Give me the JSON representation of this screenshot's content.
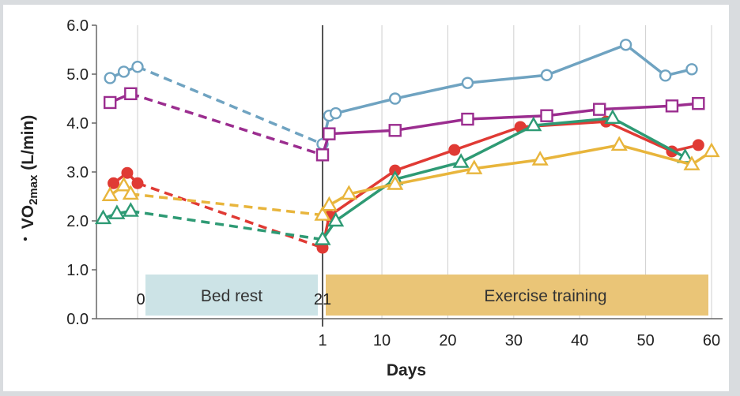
{
  "chart_data": {
    "type": "line",
    "ylabel_main": "VO",
    "ylabel_sub": "2max",
    "ylabel_unit": " (L/min)",
    "xlabel": "Days",
    "ylim": [
      0,
      6
    ],
    "y_ticks": [
      "0.0",
      "1.0",
      "2.0",
      "3.0",
      "4.0",
      "5.0",
      "6.0"
    ],
    "x_ticks_left": [
      "0",
      "21"
    ],
    "x_ticks_right": [
      "1",
      "10",
      "20",
      "30",
      "40",
      "50",
      "60"
    ],
    "phases": [
      {
        "name": "bed_rest",
        "label": "Bed rest",
        "color": "#cce3e6",
        "start_day": 0,
        "end_day": 21
      },
      {
        "name": "exercise_training",
        "label": "Exercise training",
        "color": "#eac577",
        "start_day": 1,
        "end_day": 60
      }
    ],
    "grid": "vertical",
    "series": [
      {
        "color": "#6fa3c1",
        "marker": "circle-open",
        "pre": [
          [
            -4,
            4.92
          ],
          [
            -2,
            5.05
          ],
          [
            0,
            5.15
          ]
        ],
        "bed_rest_end": 3.57,
        "training": [
          [
            2,
            4.15
          ],
          [
            3,
            4.2
          ],
          [
            12,
            4.5
          ],
          [
            23,
            4.82
          ],
          [
            35,
            4.98
          ],
          [
            47,
            5.6
          ],
          [
            53,
            4.97
          ],
          [
            57,
            5.1
          ]
        ]
      },
      {
        "color": "#9b2d8f",
        "marker": "square-open",
        "pre": [
          [
            -4,
            4.42
          ],
          [
            -1,
            4.6
          ]
        ],
        "bed_rest_end": 3.35,
        "training": [
          [
            2,
            3.78
          ],
          [
            12,
            3.85
          ],
          [
            23,
            4.08
          ],
          [
            35,
            4.15
          ],
          [
            43,
            4.28
          ],
          [
            54,
            4.35
          ],
          [
            58,
            4.4
          ]
        ]
      },
      {
        "color": "#e03a34",
        "marker": "circle-filled",
        "pre": [
          [
            -3.5,
            2.77
          ],
          [
            -1.5,
            2.98
          ],
          [
            0,
            2.77
          ]
        ],
        "bed_rest_end": 1.45,
        "training": [
          [
            2,
            2.1
          ],
          [
            12,
            3.03
          ],
          [
            21,
            3.45
          ],
          [
            31,
            3.92
          ],
          [
            44,
            4.03
          ],
          [
            54,
            3.42
          ],
          [
            58,
            3.55
          ]
        ]
      },
      {
        "color": "#2e9a74",
        "marker": "triangle-open",
        "pre": [
          [
            -5,
            2.05
          ],
          [
            -3,
            2.15
          ],
          [
            -1,
            2.2
          ]
        ],
        "bed_rest_end": 1.62,
        "training": [
          [
            3,
            2.0
          ],
          [
            12,
            2.85
          ],
          [
            22,
            3.2
          ],
          [
            33,
            3.95
          ],
          [
            45,
            4.1
          ],
          [
            56,
            3.3
          ]
        ]
      },
      {
        "color": "#e8b53c",
        "marker": "triangle-open",
        "pre": [
          [
            -4,
            2.52
          ],
          [
            -2,
            2.72
          ],
          [
            -1,
            2.55
          ]
        ],
        "bed_rest_end": 2.12,
        "training": [
          [
            2,
            2.32
          ],
          [
            5,
            2.55
          ],
          [
            12,
            2.75
          ],
          [
            24,
            3.07
          ],
          [
            34,
            3.25
          ],
          [
            46,
            3.55
          ],
          [
            57,
            3.15
          ],
          [
            60,
            3.42
          ]
        ]
      }
    ]
  }
}
